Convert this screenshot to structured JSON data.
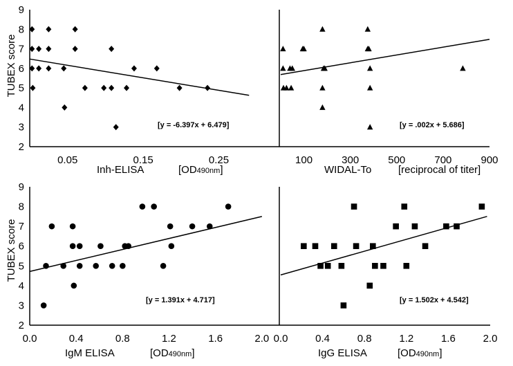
{
  "chart_data": [
    {
      "type": "scatter",
      "id": "inh",
      "marker": "diamond",
      "xlabel": "Inh-ELISA",
      "xunit_main": "[OD",
      "xunit_sub": "490nm",
      "xunit_end": "]",
      "ylabel": "TUBEX score",
      "xlim": [
        0.0,
        0.33
      ],
      "ylim": [
        2,
        9
      ],
      "xticks": [
        0.05,
        0.15,
        0.25
      ],
      "xtick_labels": [
        "0.05",
        "0.15",
        "0.25"
      ],
      "yticks": [
        2,
        3,
        4,
        5,
        6,
        7,
        8,
        9
      ],
      "ytick_labels": [
        "2",
        "3",
        "4",
        "5",
        "6",
        "7",
        "8",
        "9"
      ],
      "equation": "[y = -6.397x + 6.479]",
      "trend": {
        "slope": -6.397,
        "intercept": 6.479,
        "x_range": [
          0.0,
          0.29
        ]
      },
      "points": [
        [
          0.003,
          8
        ],
        [
          0.003,
          7
        ],
        [
          0.003,
          6
        ],
        [
          0.004,
          5
        ],
        [
          0.012,
          7
        ],
        [
          0.012,
          6
        ],
        [
          0.025,
          8
        ],
        [
          0.025,
          7
        ],
        [
          0.025,
          6
        ],
        [
          0.045,
          6
        ],
        [
          0.046,
          4
        ],
        [
          0.06,
          8
        ],
        [
          0.06,
          7
        ],
        [
          0.073,
          5
        ],
        [
          0.098,
          5
        ],
        [
          0.108,
          7
        ],
        [
          0.108,
          5
        ],
        [
          0.114,
          3
        ],
        [
          0.128,
          5
        ],
        [
          0.138,
          6
        ],
        [
          0.168,
          6
        ],
        [
          0.198,
          5
        ],
        [
          0.235,
          5
        ]
      ]
    },
    {
      "type": "scatter",
      "id": "widal",
      "marker": "triangle",
      "xlabel": "WIDAL-To",
      "xunit_main": "[reciprocal of titer]",
      "xunit_sub": "",
      "xunit_end": "",
      "ylabel": "",
      "xlim": [
        0,
        900
      ],
      "ylim": [
        2,
        9
      ],
      "xticks": [
        100,
        200,
        300,
        400,
        500,
        600,
        700,
        800,
        900
      ],
      "xtick_labels": [
        "100",
        "",
        "300",
        "",
        "500",
        "",
        "700",
        "",
        "900"
      ],
      "yticks": [],
      "ytick_labels": [],
      "equation": "[y = .002x + 5.686]",
      "trend": {
        "slope": 0.002,
        "intercept": 5.686,
        "x_range": [
          0,
          900
        ]
      },
      "points": [
        [
          10,
          7
        ],
        [
          10,
          6
        ],
        [
          12,
          5
        ],
        [
          25,
          5
        ],
        [
          40,
          6
        ],
        [
          45,
          5
        ],
        [
          50,
          6
        ],
        [
          95,
          7
        ],
        [
          100,
          7
        ],
        [
          180,
          8
        ],
        [
          180,
          5
        ],
        [
          180,
          4
        ],
        [
          185,
          6
        ],
        [
          190,
          6
        ],
        [
          375,
          8
        ],
        [
          375,
          7
        ],
        [
          380,
          7
        ],
        [
          385,
          6
        ],
        [
          385,
          5
        ],
        [
          385,
          3
        ],
        [
          785,
          6
        ]
      ]
    },
    {
      "type": "scatter",
      "id": "igm",
      "marker": "circle",
      "xlabel": "IgM ELISA",
      "xunit_main": "[OD",
      "xunit_sub": "490nm",
      "xunit_end": "]",
      "ylabel": "TUBEX score",
      "xlim": [
        0.0,
        2.15
      ],
      "ylim": [
        2,
        9
      ],
      "xticks": [
        0.0,
        0.4,
        0.8,
        1.2,
        1.6,
        2.0
      ],
      "xtick_labels": [
        "0.0",
        "0.4",
        "0.8",
        "1.2",
        "1.6",
        "2.0"
      ],
      "yticks": [
        2,
        3,
        4,
        5,
        6,
        7,
        8,
        9
      ],
      "ytick_labels": [
        "2",
        "3",
        "4",
        "5",
        "6",
        "7",
        "8",
        "9"
      ],
      "equation": "[y = 1.391x + 4.717]",
      "trend": {
        "slope": 1.391,
        "intercept": 4.717,
        "x_range": [
          0.0,
          2.0
        ]
      },
      "points": [
        [
          0.12,
          3
        ],
        [
          0.14,
          5
        ],
        [
          0.19,
          7
        ],
        [
          0.29,
          5
        ],
        [
          0.37,
          7
        ],
        [
          0.37,
          6
        ],
        [
          0.38,
          4
        ],
        [
          0.43,
          6
        ],
        [
          0.43,
          5
        ],
        [
          0.57,
          5
        ],
        [
          0.61,
          6
        ],
        [
          0.71,
          5
        ],
        [
          0.8,
          5
        ],
        [
          0.82,
          6
        ],
        [
          0.85,
          6
        ],
        [
          0.97,
          8
        ],
        [
          1.07,
          8
        ],
        [
          1.15,
          5
        ],
        [
          1.21,
          7
        ],
        [
          1.22,
          6
        ],
        [
          1.4,
          7
        ],
        [
          1.55,
          7
        ],
        [
          1.71,
          8
        ]
      ]
    },
    {
      "type": "scatter",
      "id": "igg",
      "marker": "square",
      "xlabel": "IgG ELISA",
      "xunit_main": "[OD",
      "xunit_sub": "490nm",
      "xunit_end": "]",
      "ylabel": "",
      "xlim": [
        0.0,
        2.0
      ],
      "ylim": [
        2,
        9
      ],
      "xticks": [
        0.0,
        0.4,
        0.8,
        1.2,
        1.6,
        2.0
      ],
      "xtick_labels": [
        "0.0",
        "0.4",
        "0.8",
        "1.2",
        "1.6",
        "2.0"
      ],
      "yticks": [],
      "ytick_labels": [],
      "equation": "[y = 1.502x + 4.542]",
      "trend": {
        "slope": 1.502,
        "intercept": 4.542,
        "x_range": [
          0.0,
          1.97
        ]
      },
      "points": [
        [
          0.22,
          6
        ],
        [
          0.33,
          6
        ],
        [
          0.38,
          5
        ],
        [
          0.45,
          5
        ],
        [
          0.51,
          6
        ],
        [
          0.58,
          5
        ],
        [
          0.6,
          3
        ],
        [
          0.7,
          8
        ],
        [
          0.72,
          6
        ],
        [
          0.85,
          4
        ],
        [
          0.88,
          6
        ],
        [
          0.9,
          5
        ],
        [
          0.98,
          5
        ],
        [
          1.1,
          7
        ],
        [
          1.18,
          8
        ],
        [
          1.2,
          5
        ],
        [
          1.28,
          7
        ],
        [
          1.38,
          6
        ],
        [
          1.58,
          7
        ],
        [
          1.68,
          7
        ],
        [
          1.92,
          8
        ]
      ]
    }
  ]
}
